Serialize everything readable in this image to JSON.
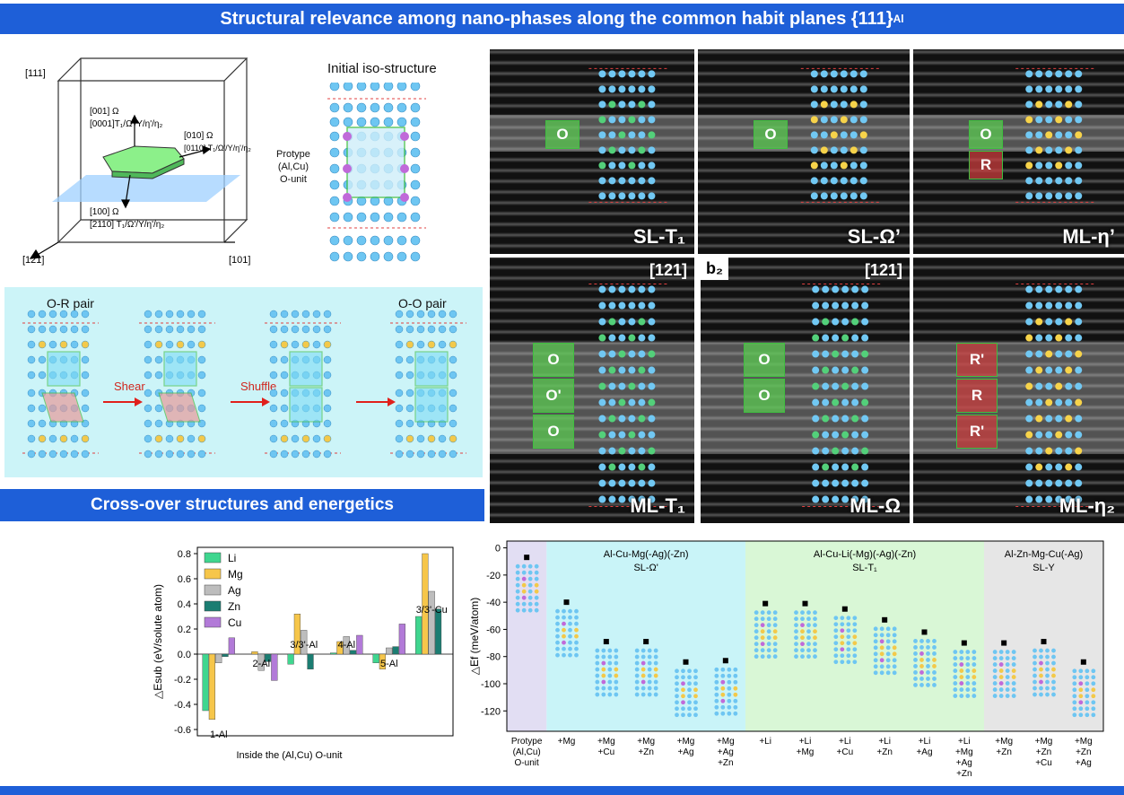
{
  "banners": {
    "top": "Structural relevance among nano-phases along the common habit planes {111}",
    "top_sub": "Al",
    "middle": "Cross-over structures and energetics"
  },
  "schematic": {
    "title": "Initial iso-structure",
    "axis_111": "[111]",
    "axis_10_1": "[101]",
    "axis_12_1": "[121]",
    "al_sub": "Al",
    "dir_001": "[001] Ω",
    "dir_0001": "[0001]T₁/Ω'/Y/η'/η₂",
    "dir_010": "[010] Ω",
    "dir_0110": "[0110] T₁/Ω'/Y/η'/η₂",
    "dir_100": "[100] Ω",
    "dir_2110": "[2110] T₁/Ω'/Y/η'/η₂",
    "protype_label": [
      "Protype",
      "(Al,Cu)",
      "O-unit"
    ]
  },
  "transform": {
    "or_pair": "O-R pair",
    "oo_pair": "O-O pair",
    "shear": "Shear",
    "shuffle": "Shuffle"
  },
  "stem_panels": {
    "top": [
      {
        "label": "SL-T₁",
        "zone": "O"
      },
      {
        "label": "SL-Ω’",
        "zone": "O"
      },
      {
        "label": "ML-η’",
        "zone": "O",
        "zone2": "R"
      }
    ],
    "bottom": [
      {
        "label": "ML-T₁",
        "index": "[121]",
        "zones": [
          "O",
          "O'",
          "O"
        ]
      },
      {
        "label": "ML-Ω",
        "tag": "b₂",
        "index": "[121]",
        "zones": [
          "O",
          "O"
        ]
      },
      {
        "label": "ML-η₂",
        "zones": [
          "R'",
          "R",
          "R'"
        ]
      }
    ]
  },
  "bar_chart": {
    "chart_data": {
      "type": "bar",
      "categories": [
        "1-Al",
        "2-Al",
        "3/3'-Al",
        "4-Al",
        "5-Al",
        "3/3'-Cu"
      ],
      "series": [
        {
          "name": "Li",
          "color": "#3fd68f",
          "values": [
            -0.45,
            0.0,
            -0.08,
            0.01,
            -0.07,
            0.3
          ]
        },
        {
          "name": "Mg",
          "color": "#f6c64a",
          "values": [
            -0.52,
            0.02,
            0.32,
            0.1,
            -0.12,
            0.8
          ]
        },
        {
          "name": "Ag",
          "color": "#bdbdbd",
          "values": [
            -0.07,
            -0.13,
            0.19,
            0.14,
            0.05,
            0.5
          ]
        },
        {
          "name": "Zn",
          "color": "#1b7d72",
          "values": [
            -0.02,
            -0.06,
            -0.12,
            0.03,
            0.06,
            0.36
          ]
        },
        {
          "name": "Cu",
          "color": "#b27ad8",
          "values": [
            0.13,
            -0.21,
            null,
            0.15,
            0.24,
            null
          ]
        }
      ],
      "ylim": [
        -0.65,
        0.85
      ],
      "yticks": [
        -0.6,
        -0.4,
        -0.2,
        0.0,
        0.2,
        0.4,
        0.6,
        0.8
      ],
      "ylabel": "△Esub (eV/solute atom)",
      "xlabel": "Inside the (Al,Cu) O-unit",
      "legend": "top-left"
    }
  },
  "energy_chart": {
    "chart_data": {
      "type": "scatter",
      "categories": [
        "Protype\n(Al,Cu)\nO-unit",
        "+Mg",
        "+Mg\n+Cu",
        "+Mg\n+Zn",
        "+Mg\n+Ag",
        "+Mg\n+Ag\n+Zn",
        "+Li",
        "+Li\n+Mg",
        "+Li\n+Cu",
        "+Li\n+Zn",
        "+Li\n+Ag",
        "+Li\n+Mg\n+Ag\n+Zn",
        "+Mg\n+Zn",
        "+Mg\n+Zn\n+Cu",
        "+Mg\n+Zn\n+Ag"
      ],
      "values": [
        -7,
        -40,
        -69,
        -69,
        -84,
        -83,
        -41,
        -41,
        -45,
        -53,
        -62,
        -70,
        -70,
        -69,
        -84
      ],
      "ylim": [
        -135,
        5
      ],
      "yticks": [
        0,
        -20,
        -40,
        -60,
        -80,
        -100,
        -120
      ],
      "ylabel": "△Ef (meV/atom)",
      "groups": [
        {
          "title": "Al-Cu-Mg(-Ag)(-Zn)",
          "subtitle": "SL-Ω'",
          "color": "#c9f4f8"
        },
        {
          "title": "Al-Cu-Li(-Mg)(-Ag)(-Zn)",
          "subtitle": "SL-T₁",
          "color": "#d9f7d6"
        },
        {
          "title": "Al-Zn-Mg-Cu(-Ag)",
          "subtitle": "SL-Y",
          "color": "#e6e6e6"
        }
      ]
    }
  }
}
